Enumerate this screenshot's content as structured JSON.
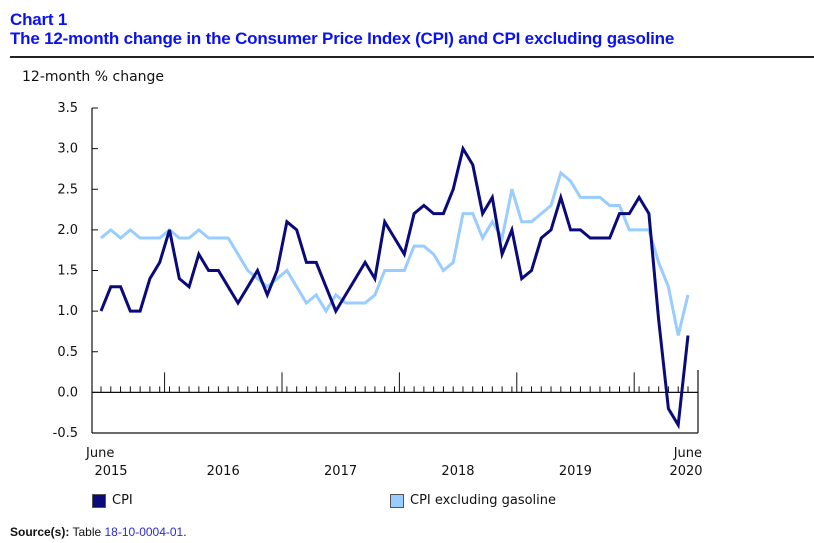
{
  "header": {
    "chart_number": "Chart 1",
    "title": "The 12-month change in the Consumer Price Index (CPI) and CPI excluding gasoline"
  },
  "source": {
    "label": "Source(s):",
    "text": "Table",
    "link": "18-10-0004-01",
    "suffix": "."
  },
  "colors": {
    "title": "#0b12f0",
    "cpi": "#0a0a7a",
    "cpi_ex_gas": "#99ccff"
  },
  "chart_data": {
    "type": "line",
    "title": "The 12-month change in the Consumer Price Index (CPI) and CPI excluding gasoline",
    "xlabel": "",
    "ylabel": "12-month % change",
    "ylim": [
      -0.5,
      3.5
    ],
    "yticks": [
      "3.5",
      "3.0",
      "2.5",
      "2.0",
      "1.5",
      "1.0",
      "0.5",
      "0.0",
      "-0.5"
    ],
    "ytick_values": [
      3.5,
      3.0,
      2.5,
      2.0,
      1.5,
      1.0,
      0.5,
      0.0,
      -0.5
    ],
    "x_start": "June 2015",
    "x_end": "June 2020",
    "x_tick_labels": [
      {
        "month_index": 0,
        "line1": "June",
        "line2": "2015"
      },
      {
        "month_index": 13,
        "line1": "",
        "line2": "2016"
      },
      {
        "month_index": 25,
        "line1": "",
        "line2": "2017"
      },
      {
        "month_index": 37,
        "line1": "",
        "line2": "2018"
      },
      {
        "month_index": 49,
        "line1": "",
        "line2": "2019"
      },
      {
        "month_index": 60,
        "line1": "June",
        "line2": "2020"
      }
    ],
    "year_separators_after_index": [
      6,
      18,
      30,
      42,
      54
    ],
    "grid": false,
    "legend_position": "bottom",
    "x": [
      "2015-06",
      "2015-07",
      "2015-08",
      "2015-09",
      "2015-10",
      "2015-11",
      "2015-12",
      "2016-01",
      "2016-02",
      "2016-03",
      "2016-04",
      "2016-05",
      "2016-06",
      "2016-07",
      "2016-08",
      "2016-09",
      "2016-10",
      "2016-11",
      "2016-12",
      "2017-01",
      "2017-02",
      "2017-03",
      "2017-04",
      "2017-05",
      "2017-06",
      "2017-07",
      "2017-08",
      "2017-09",
      "2017-10",
      "2017-11",
      "2017-12",
      "2018-01",
      "2018-02",
      "2018-03",
      "2018-04",
      "2018-05",
      "2018-06",
      "2018-07",
      "2018-08",
      "2018-09",
      "2018-10",
      "2018-11",
      "2018-12",
      "2019-01",
      "2019-02",
      "2019-03",
      "2019-04",
      "2019-05",
      "2019-06",
      "2019-07",
      "2019-08",
      "2019-09",
      "2019-10",
      "2019-11",
      "2019-12",
      "2020-01",
      "2020-02",
      "2020-03",
      "2020-04",
      "2020-05",
      "2020-06"
    ],
    "series": [
      {
        "name": "CPI",
        "color": "#0a0a7a",
        "values": [
          1.0,
          1.3,
          1.3,
          1.0,
          1.0,
          1.4,
          1.6,
          2.0,
          1.4,
          1.3,
          1.7,
          1.5,
          1.5,
          1.3,
          1.1,
          1.3,
          1.5,
          1.2,
          1.5,
          2.1,
          2.0,
          1.6,
          1.6,
          1.3,
          1.0,
          1.2,
          1.4,
          1.6,
          1.4,
          2.1,
          1.9,
          1.7,
          2.2,
          2.3,
          2.2,
          2.2,
          2.5,
          3.0,
          2.8,
          2.2,
          2.4,
          1.7,
          2.0,
          1.4,
          1.5,
          1.9,
          2.0,
          2.4,
          2.0,
          2.0,
          1.9,
          1.9,
          1.9,
          2.2,
          2.2,
          2.4,
          2.2,
          0.9,
          -0.2,
          -0.4,
          0.7
        ]
      },
      {
        "name": "CPI excluding gasoline",
        "color": "#99ccff",
        "values": [
          1.9,
          2.0,
          1.9,
          2.0,
          1.9,
          1.9,
          1.9,
          2.0,
          1.9,
          1.9,
          2.0,
          1.9,
          1.9,
          1.9,
          1.7,
          1.5,
          1.4,
          1.3,
          1.4,
          1.5,
          1.3,
          1.1,
          1.2,
          1.0,
          1.2,
          1.1,
          1.1,
          1.1,
          1.2,
          1.5,
          1.5,
          1.5,
          1.8,
          1.8,
          1.7,
          1.5,
          1.6,
          2.2,
          2.2,
          1.9,
          2.1,
          1.9,
          2.5,
          2.1,
          2.1,
          2.2,
          2.3,
          2.7,
          2.6,
          2.4,
          2.4,
          2.4,
          2.3,
          2.3,
          2.0,
          2.0,
          2.0,
          1.6,
          1.3,
          0.7,
          1.2
        ]
      }
    ]
  }
}
